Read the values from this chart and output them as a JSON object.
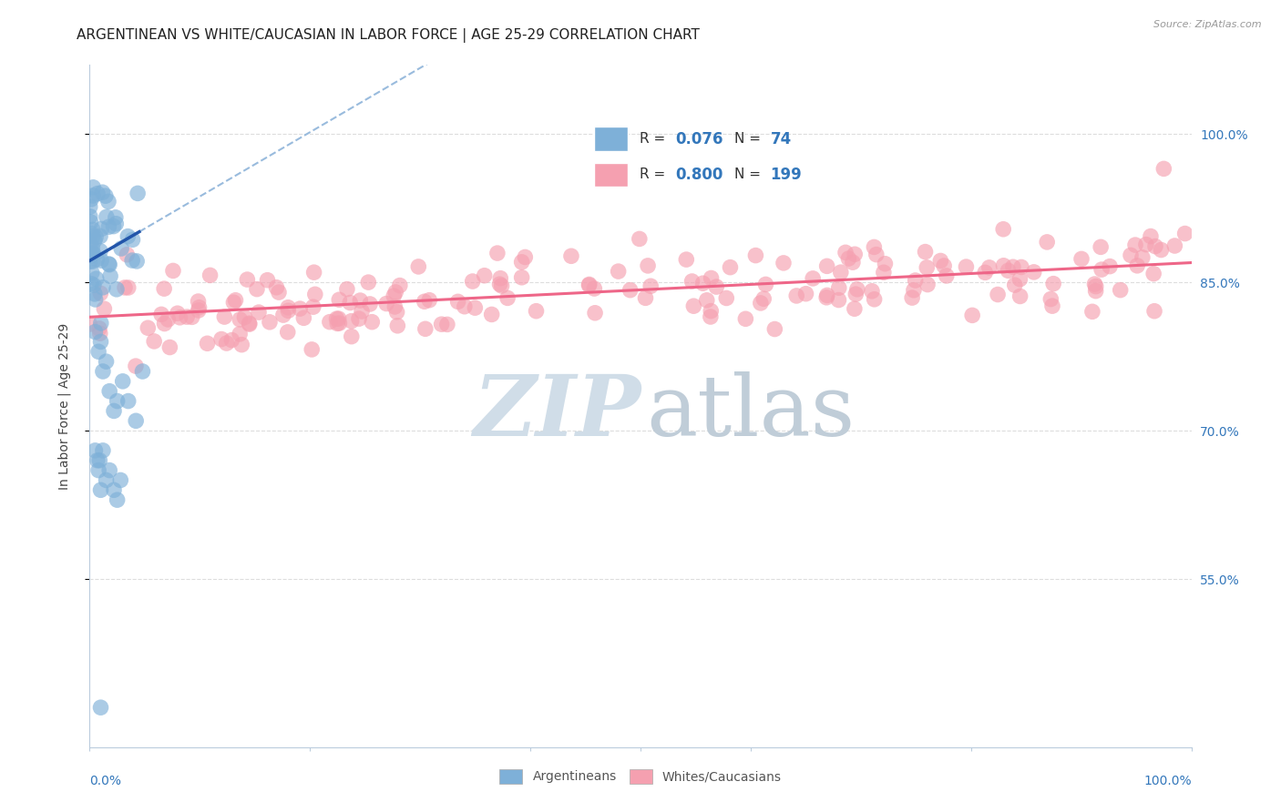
{
  "title": "ARGENTINEAN VS WHITE/CAUCASIAN IN LABOR FORCE | AGE 25-29 CORRELATION CHART",
  "source": "Source: ZipAtlas.com",
  "ylabel": "In Labor Force | Age 25-29",
  "ytick_labels": [
    "55.0%",
    "70.0%",
    "85.0%",
    "100.0%"
  ],
  "ytick_values": [
    0.55,
    0.7,
    0.85,
    1.0
  ],
  "xlim": [
    0.0,
    1.0
  ],
  "ylim": [
    0.38,
    1.07
  ],
  "blue_R": 0.076,
  "blue_N": 74,
  "pink_R": 0.8,
  "pink_N": 199,
  "blue_color": "#7EB0D8",
  "pink_color": "#F5A0B0",
  "blue_line_color": "#2255AA",
  "pink_line_color": "#EE6688",
  "dashed_line_color": "#99BBDD",
  "watermark_zip": "ZIP",
  "watermark_atlas": "atlas",
  "watermark_color_zip": "#C8D8E8",
  "watermark_color_atlas": "#B8C8D8",
  "legend_label_blue": "Argentineans",
  "legend_label_pink": "Whites/Caucasians",
  "title_color": "#222222",
  "axis_color": "#BBCCDD",
  "grid_color": "#DDDDDD",
  "title_fontsize": 11,
  "source_fontsize": 8,
  "label_fontsize": 9
}
